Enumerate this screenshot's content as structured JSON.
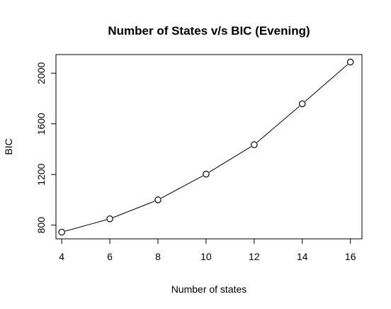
{
  "chart_data": {
    "type": "line",
    "title": "Number of States v/s BIC (Evening)",
    "xlabel": "Number of states",
    "ylabel": "BIC",
    "x": [
      4,
      6,
      8,
      10,
      12,
      14,
      16
    ],
    "series": [
      {
        "values": [
          745,
          850,
          1000,
          1203,
          1435,
          1758,
          2088
        ],
        "marker": "open-circle",
        "line": true,
        "color": "#000000"
      }
    ],
    "xticks": [
      4,
      6,
      8,
      10,
      12,
      14,
      16
    ],
    "yticks": [
      800,
      1200,
      1600,
      2000
    ],
    "xlim": [
      3.76,
      16.48
    ],
    "ylim": [
      692,
      2147
    ],
    "grid": false,
    "legend": "none",
    "box": true
  }
}
